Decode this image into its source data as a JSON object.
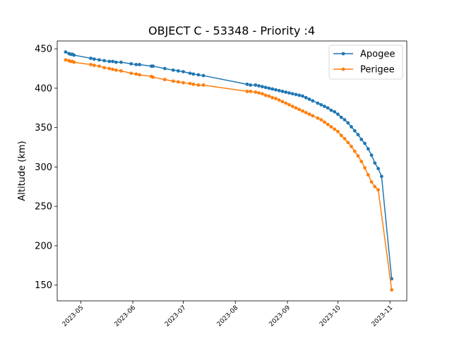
{
  "chart_data": {
    "type": "line",
    "title": "OBJECT C - 53348 - Priority :4",
    "xlabel": "",
    "ylabel": "Altitude (km)",
    "xlim": [
      "2023-04-17",
      "2023-11-11"
    ],
    "ylim": [
      130,
      460
    ],
    "x_ticks": [
      "2023-05",
      "2023-06",
      "2023-07",
      "2023-08",
      "2023-09",
      "2023-10",
      "2023-11"
    ],
    "y_ticks": [
      150,
      200,
      250,
      300,
      350,
      400,
      450
    ],
    "legend": {
      "placement": "top-right",
      "entries": [
        "Apogee",
        "Perigee"
      ]
    },
    "grid": false,
    "series": [
      {
        "name": "Apogee",
        "color": "#1f77b4",
        "points": [
          [
            "2023-04-22",
            446
          ],
          [
            "2023-04-24",
            444
          ],
          [
            "2023-04-25",
            443
          ],
          [
            "2023-04-26",
            443
          ],
          [
            "2023-04-27",
            442
          ],
          [
            "2023-05-07",
            438
          ],
          [
            "2023-05-09",
            437
          ],
          [
            "2023-05-12",
            436
          ],
          [
            "2023-05-15",
            435
          ],
          [
            "2023-05-18",
            434
          ],
          [
            "2023-05-20",
            434
          ],
          [
            "2023-05-22",
            433
          ],
          [
            "2023-05-25",
            433
          ],
          [
            "2023-05-31",
            431
          ],
          [
            "2023-06-03",
            430
          ],
          [
            "2023-06-05",
            430
          ],
          [
            "2023-06-12",
            428
          ],
          [
            "2023-06-13",
            428
          ],
          [
            "2023-06-20",
            425
          ],
          [
            "2023-06-25",
            423
          ],
          [
            "2023-06-28",
            422
          ],
          [
            "2023-07-01",
            421
          ],
          [
            "2023-07-05",
            419
          ],
          [
            "2023-07-07",
            418
          ],
          [
            "2023-07-10",
            417
          ],
          [
            "2023-07-13",
            416
          ],
          [
            "2023-08-08",
            405
          ],
          [
            "2023-08-10",
            404
          ],
          [
            "2023-08-13",
            404
          ],
          [
            "2023-08-15",
            403
          ],
          [
            "2023-08-17",
            402
          ],
          [
            "2023-08-19",
            401
          ],
          [
            "2023-08-21",
            400
          ],
          [
            "2023-08-23",
            399
          ],
          [
            "2023-08-25",
            398
          ],
          [
            "2023-08-27",
            397
          ],
          [
            "2023-08-29",
            396
          ],
          [
            "2023-08-31",
            395
          ],
          [
            "2023-09-02",
            394
          ],
          [
            "2023-09-04",
            393
          ],
          [
            "2023-09-06",
            392
          ],
          [
            "2023-09-08",
            391
          ],
          [
            "2023-09-10",
            390
          ],
          [
            "2023-09-12",
            388
          ],
          [
            "2023-09-14",
            386
          ],
          [
            "2023-09-16",
            384
          ],
          [
            "2023-09-19",
            381
          ],
          [
            "2023-09-21",
            379
          ],
          [
            "2023-09-23",
            377
          ],
          [
            "2023-09-25",
            375
          ],
          [
            "2023-09-27",
            372
          ],
          [
            "2023-09-29",
            370
          ],
          [
            "2023-10-01",
            367
          ],
          [
            "2023-10-03",
            363
          ],
          [
            "2023-10-05",
            360
          ],
          [
            "2023-10-07",
            356
          ],
          [
            "2023-10-09",
            351
          ],
          [
            "2023-10-11",
            346
          ],
          [
            "2023-10-13",
            341
          ],
          [
            "2023-10-15",
            335
          ],
          [
            "2023-10-17",
            330
          ],
          [
            "2023-10-19",
            323
          ],
          [
            "2023-10-21",
            315
          ],
          [
            "2023-10-23",
            305
          ],
          [
            "2023-10-25",
            298
          ],
          [
            "2023-10-27",
            288
          ],
          [
            "2023-11-02",
            158
          ]
        ]
      },
      {
        "name": "Perigee",
        "color": "#ff7f0e",
        "points": [
          [
            "2023-04-22",
            436
          ],
          [
            "2023-04-24",
            435
          ],
          [
            "2023-04-25",
            434
          ],
          [
            "2023-04-26",
            434
          ],
          [
            "2023-04-27",
            433
          ],
          [
            "2023-05-07",
            430
          ],
          [
            "2023-05-09",
            429
          ],
          [
            "2023-05-12",
            428
          ],
          [
            "2023-05-15",
            426
          ],
          [
            "2023-05-18",
            425
          ],
          [
            "2023-05-20",
            424
          ],
          [
            "2023-05-22",
            423
          ],
          [
            "2023-05-25",
            422
          ],
          [
            "2023-05-31",
            419
          ],
          [
            "2023-06-03",
            418
          ],
          [
            "2023-06-05",
            417
          ],
          [
            "2023-06-12",
            415
          ],
          [
            "2023-06-13",
            414
          ],
          [
            "2023-06-20",
            411
          ],
          [
            "2023-06-25",
            409
          ],
          [
            "2023-06-28",
            408
          ],
          [
            "2023-07-01",
            407
          ],
          [
            "2023-07-05",
            406
          ],
          [
            "2023-07-07",
            405
          ],
          [
            "2023-07-10",
            404
          ],
          [
            "2023-07-13",
            404
          ],
          [
            "2023-08-08",
            396
          ],
          [
            "2023-08-10",
            396
          ],
          [
            "2023-08-13",
            395
          ],
          [
            "2023-08-15",
            394
          ],
          [
            "2023-08-17",
            393
          ],
          [
            "2023-08-19",
            391
          ],
          [
            "2023-08-21",
            390
          ],
          [
            "2023-08-23",
            388
          ],
          [
            "2023-08-25",
            387
          ],
          [
            "2023-08-27",
            385
          ],
          [
            "2023-08-29",
            383
          ],
          [
            "2023-08-31",
            381
          ],
          [
            "2023-09-02",
            379
          ],
          [
            "2023-09-04",
            377
          ],
          [
            "2023-09-06",
            375
          ],
          [
            "2023-09-08",
            373
          ],
          [
            "2023-09-10",
            371
          ],
          [
            "2023-09-12",
            369
          ],
          [
            "2023-09-14",
            367
          ],
          [
            "2023-09-16",
            365
          ],
          [
            "2023-09-19",
            362
          ],
          [
            "2023-09-21",
            360
          ],
          [
            "2023-09-23",
            357
          ],
          [
            "2023-09-25",
            354
          ],
          [
            "2023-09-27",
            351
          ],
          [
            "2023-09-29",
            348
          ],
          [
            "2023-10-01",
            345
          ],
          [
            "2023-10-03",
            340
          ],
          [
            "2023-10-05",
            336
          ],
          [
            "2023-10-07",
            331
          ],
          [
            "2023-10-09",
            326
          ],
          [
            "2023-10-11",
            320
          ],
          [
            "2023-10-13",
            314
          ],
          [
            "2023-10-15",
            307
          ],
          [
            "2023-10-17",
            299
          ],
          [
            "2023-10-19",
            290
          ],
          [
            "2023-10-21",
            281
          ],
          [
            "2023-10-23",
            275
          ],
          [
            "2023-10-25",
            271
          ],
          [
            "2023-11-02",
            144
          ]
        ]
      }
    ]
  }
}
